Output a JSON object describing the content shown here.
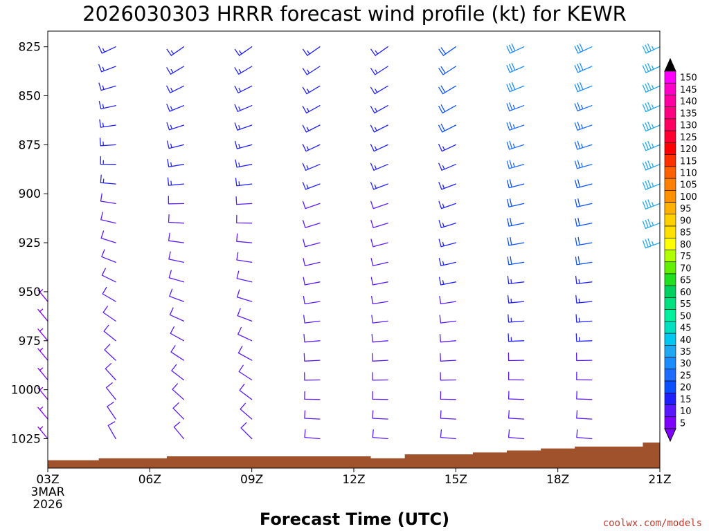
{
  "chart_data": {
    "type": "wind-barb-profile",
    "title": "2026030303 HRRR forecast wind profile (kt) for KEWR",
    "xlabel": "Forecast Time (UTC)",
    "ylabel": "",
    "credit": "coolwx.com/models",
    "x_ticks": [
      {
        "hour": 0,
        "label": "03Z",
        "sub": [
          "3MAR",
          "2026"
        ]
      },
      {
        "hour": 3,
        "label": "06Z"
      },
      {
        "hour": 6,
        "label": "09Z"
      },
      {
        "hour": 9,
        "label": "12Z"
      },
      {
        "hour": 12,
        "label": "15Z"
      },
      {
        "hour": 15,
        "label": "18Z"
      },
      {
        "hour": 18,
        "label": "21Z"
      }
    ],
    "xlim": [
      0,
      18
    ],
    "y_ticks": [
      825,
      850,
      875,
      900,
      925,
      950,
      975,
      1000,
      1025
    ],
    "ylim": [
      817,
      1040
    ],
    "barb_levels": [
      825,
      835,
      845,
      855,
      865,
      875,
      885,
      895,
      905,
      915,
      925,
      935,
      945,
      955,
      965,
      975,
      985,
      995,
      1005,
      1015,
      1025
    ],
    "forecast_hours": [
      0,
      2,
      4,
      6,
      8,
      10,
      12,
      14,
      16,
      18
    ],
    "surface_pressure": [
      {
        "hour": 0,
        "p": 1036
      },
      {
        "hour": 1.5,
        "p": 1035
      },
      {
        "hour": 3.5,
        "p": 1034
      },
      {
        "hour": 7.5,
        "p": 1034
      },
      {
        "hour": 9.5,
        "p": 1035
      },
      {
        "hour": 10.5,
        "p": 1033
      },
      {
        "hour": 12.5,
        "p": 1032
      },
      {
        "hour": 13.5,
        "p": 1031
      },
      {
        "hour": 14.5,
        "p": 1030
      },
      {
        "hour": 15.5,
        "p": 1029
      },
      {
        "hour": 17.5,
        "p": 1027
      },
      {
        "hour": 18,
        "p": 1027
      }
    ],
    "wind_profile": {
      "description": "speed (kt) and direction (deg from) per column; interpolated across barb_levels",
      "columns": [
        {
          "hour": 0,
          "top": {
            "spd": 5,
            "dir": 320
          },
          "bottom": {
            "spd": 5,
            "dir": 320
          },
          "start_p": 955
        },
        {
          "hour": 2,
          "top": {
            "spd": 15,
            "dir": 245
          },
          "bottom": {
            "spd": 8,
            "dir": 330
          }
        },
        {
          "hour": 4,
          "top": {
            "spd": 15,
            "dir": 235
          },
          "bottom": {
            "spd": 8,
            "dir": 320
          }
        },
        {
          "hour": 6,
          "top": {
            "spd": 15,
            "dir": 235
          },
          "bottom": {
            "spd": 8,
            "dir": 315
          }
        },
        {
          "hour": 8,
          "top": {
            "spd": 15,
            "dir": 235
          },
          "bottom": {
            "spd": 8,
            "dir": 275
          }
        },
        {
          "hour": 10,
          "top": {
            "spd": 15,
            "dir": 235
          },
          "bottom": {
            "spd": 8,
            "dir": 275
          }
        },
        {
          "hour": 12,
          "top": {
            "spd": 20,
            "dir": 235
          },
          "bottom": {
            "spd": 8,
            "dir": 275
          }
        },
        {
          "hour": 14,
          "top": {
            "spd": 30,
            "dir": 245
          },
          "bottom": {
            "spd": 8,
            "dir": 275
          }
        },
        {
          "hour": 16,
          "top": {
            "spd": 30,
            "dir": 245
          },
          "bottom": {
            "spd": 8,
            "dir": 275
          }
        },
        {
          "hour": 18,
          "top": {
            "spd": 35,
            "dir": 245
          },
          "bottom": {
            "spd": 32,
            "dir": 255
          },
          "end_p": 925
        }
      ]
    },
    "colorbar": {
      "values": [
        5,
        10,
        15,
        20,
        25,
        30,
        35,
        40,
        45,
        50,
        55,
        60,
        65,
        70,
        75,
        80,
        85,
        90,
        95,
        100,
        105,
        110,
        115,
        120,
        125,
        130,
        135,
        140,
        145,
        150
      ],
      "colors": [
        "#8000ff",
        "#5a18ff",
        "#2020ff",
        "#0a50ff",
        "#1e6cff",
        "#1a8cff",
        "#20a8f0",
        "#00c8f0",
        "#00e0c0",
        "#00f0a0",
        "#00e080",
        "#00d060",
        "#20e020",
        "#60f000",
        "#b0ff00",
        "#ffff00",
        "#ffe000",
        "#ffd000",
        "#ffb000",
        "#ff9000",
        "#ff8000",
        "#ff6000",
        "#ff3000",
        "#ff0000",
        "#ff0030",
        "#ff0060",
        "#ff0080",
        "#ff00a0",
        "#ff00c8",
        "#ff00ff"
      ]
    },
    "ground_color": "#a0522d"
  }
}
